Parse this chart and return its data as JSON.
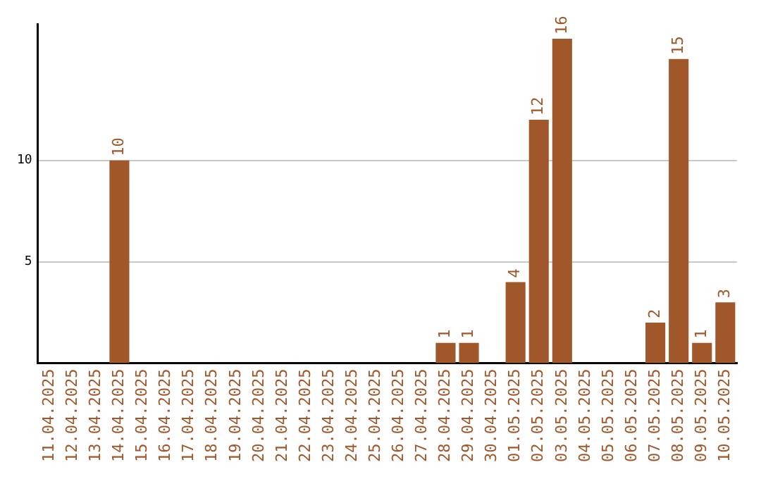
{
  "chart_data": {
    "type": "bar",
    "categories": [
      "11.04.2025",
      "12.04.2025",
      "13.04.2025",
      "14.04.2025",
      "15.04.2025",
      "16.04.2025",
      "17.04.2025",
      "18.04.2025",
      "19.04.2025",
      "20.04.2025",
      "21.04.2025",
      "22.04.2025",
      "23.04.2025",
      "24.04.2025",
      "25.04.2025",
      "26.04.2025",
      "27.04.2025",
      "28.04.2025",
      "29.04.2025",
      "30.04.2025",
      "01.05.2025",
      "02.05.2025",
      "03.05.2025",
      "04.05.2025",
      "05.05.2025",
      "06.05.2025",
      "07.05.2025",
      "08.05.2025",
      "09.05.2025",
      "10.05.2025"
    ],
    "values": [
      0,
      0,
      0,
      10,
      0,
      0,
      0,
      0,
      0,
      0,
      0,
      0,
      0,
      0,
      0,
      0,
      0,
      1,
      1,
      0,
      4,
      12,
      16,
      0,
      0,
      0,
      2,
      15,
      1,
      3
    ],
    "value_labels": [
      null,
      null,
      null,
      "10",
      null,
      null,
      null,
      null,
      null,
      null,
      null,
      null,
      null,
      null,
      null,
      null,
      null,
      "1",
      "1",
      null,
      "4",
      "12",
      "16",
      null,
      null,
      null,
      "2",
      "15",
      "1",
      "3"
    ],
    "color": "#a0572a",
    "ylim": [
      0,
      16.7
    ],
    "yticks": [
      5,
      10
    ],
    "grid": "y",
    "legend": false
  }
}
